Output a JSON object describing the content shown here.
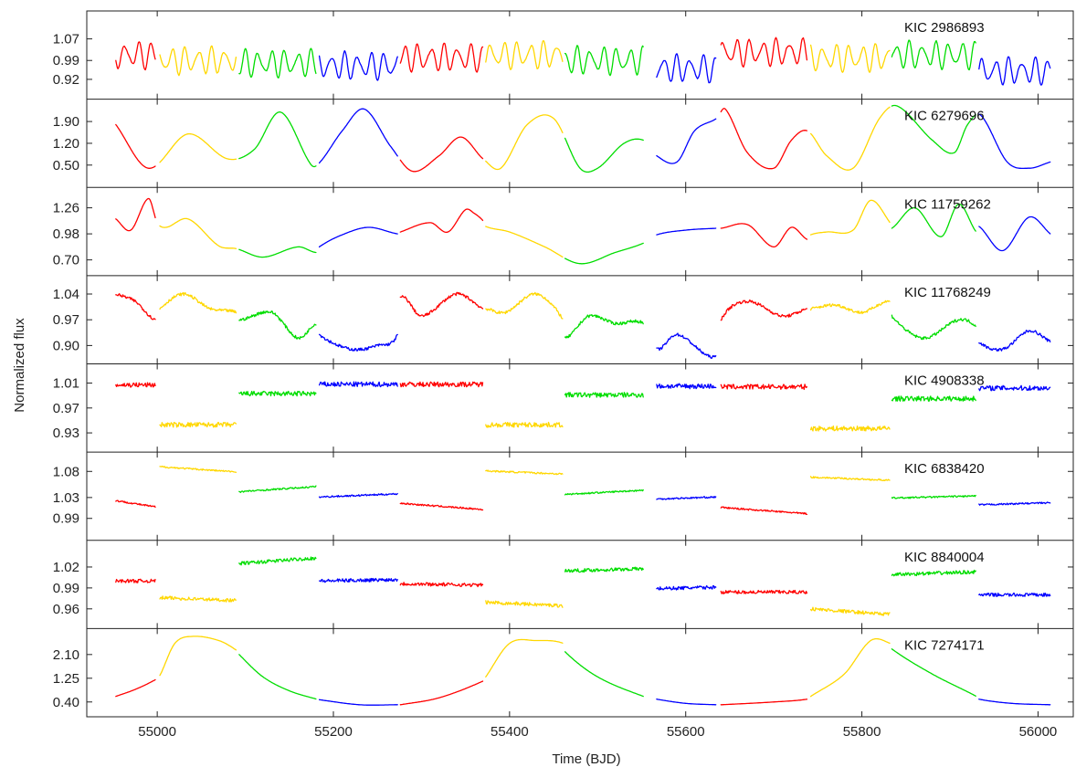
{
  "chart_data": {
    "type": "line",
    "xlabel": "Time (BJD)",
    "ylabel": "Normalized flux",
    "xlim": [
      54920,
      56040
    ],
    "x_ticks": [
      55000,
      55200,
      55400,
      55600,
      55800,
      56000
    ],
    "grid": false,
    "legend": "none",
    "colors": {
      "red": "#ff0000",
      "yellow": "#ffd700",
      "green": "#00dd00",
      "blue": "#0000ff"
    },
    "quarters": [
      {
        "start": 54953,
        "end": 54998,
        "color": "red"
      },
      {
        "start": 55003,
        "end": 55090,
        "color": "yellow"
      },
      {
        "start": 55093,
        "end": 55181,
        "color": "green"
      },
      {
        "start": 55184,
        "end": 55273,
        "color": "blue"
      },
      {
        "start": 55276,
        "end": 55370,
        "color": "red"
      },
      {
        "start": 55373,
        "end": 55461,
        "color": "yellow"
      },
      {
        "start": 55463,
        "end": 55552,
        "color": "green"
      },
      {
        "start": 55567,
        "end": 55635,
        "color": "blue"
      },
      {
        "start": 55640,
        "end": 55738,
        "color": "red"
      },
      {
        "start": 55742,
        "end": 55832,
        "color": "yellow"
      },
      {
        "start": 55834,
        "end": 55930,
        "color": "green"
      },
      {
        "start": 55933,
        "end": 56014,
        "color": "blue"
      }
    ],
    "panels": [
      {
        "name": "KIC 2986893",
        "ylim": [
          0.86,
          1.16
        ],
        "yticks": [
          "1.07",
          "0.99",
          "0.92"
        ],
        "ytick_values": [
          1.07,
          0.99,
          0.92
        ],
        "kind": "osc",
        "base": 0.99,
        "amp": 0.05,
        "period": 15,
        "noise": 0.003,
        "offsets": [
          1.01,
          0.99,
          0.98,
          0.97,
          1.0,
          1.01,
          0.99,
          0.96,
          1.02,
          1.0,
          1.01,
          0.95
        ]
      },
      {
        "name": "KIC 6279696",
        "ylim": [
          -0.1,
          2.5
        ],
        "yticks": [
          "1.90",
          "1.20",
          "0.50"
        ],
        "ytick_values": [
          1.9,
          1.2,
          0.5
        ],
        "kind": "smooth",
        "noise": 0,
        "x": [
          54953,
          54990,
          55035,
          55080,
          55110,
          55140,
          55175,
          55185,
          55210,
          55235,
          55265,
          55290,
          55320,
          55345,
          55370,
          55390,
          55420,
          55450,
          55480,
          55500,
          55530,
          55552,
          55567,
          55590,
          55610,
          55635,
          55645,
          55670,
          55700,
          55720,
          55738,
          55760,
          55790,
          55820,
          55840,
          55880,
          55905,
          55920,
          55935,
          55965,
          55990,
          56014
        ],
        "y": [
          1.8,
          0.4,
          1.5,
          0.7,
          1.0,
          2.2,
          0.5,
          0.6,
          1.6,
          2.3,
          1.1,
          0.3,
          0.8,
          1.4,
          0.7,
          0.4,
          1.8,
          2.0,
          0.4,
          0.4,
          1.2,
          1.3,
          0.8,
          0.6,
          1.6,
          2.0,
          2.3,
          0.9,
          0.4,
          1.3,
          1.6,
          0.8,
          0.4,
          2.0,
          2.4,
          1.3,
          0.9,
          1.8,
          2.1,
          0.6,
          0.4,
          0.6
        ]
      },
      {
        "name": "KIC 11759262",
        "ylim": [
          0.57,
          1.44
        ],
        "yticks": [
          "1.26",
          "0.98",
          "0.70"
        ],
        "ytick_values": [
          1.26,
          0.98,
          0.7
        ],
        "kind": "smooth",
        "noise": 0,
        "x": [
          54953,
          54970,
          54990,
          55000,
          55010,
          55035,
          55070,
          55090,
          55120,
          55160,
          55181,
          55184,
          55210,
          55240,
          55273,
          55276,
          55310,
          55330,
          55350,
          55360,
          55370,
          55373,
          55400,
          55440,
          55480,
          55520,
          55552,
          55567,
          55600,
          55635,
          55640,
          55670,
          55700,
          55720,
          55738,
          55742,
          55760,
          55790,
          55810,
          55832,
          55834,
          55860,
          55890,
          55910,
          55930,
          55933,
          55960,
          55990,
          56014
        ],
        "y": [
          1.14,
          1.02,
          1.36,
          1.1,
          1.05,
          1.14,
          0.85,
          0.82,
          0.73,
          0.84,
          0.78,
          0.84,
          0.97,
          1.05,
          0.98,
          1.0,
          1.1,
          1.0,
          1.24,
          1.2,
          1.12,
          1.06,
          1.0,
          0.84,
          0.66,
          0.78,
          0.88,
          0.97,
          1.02,
          1.04,
          1.04,
          1.08,
          0.84,
          1.05,
          0.92,
          0.97,
          1.0,
          1.02,
          1.34,
          1.1,
          1.04,
          1.26,
          0.95,
          1.3,
          1.0,
          1.06,
          0.8,
          1.16,
          0.98
        ]
      },
      {
        "name": "KIC 11768249",
        "ylim": [
          0.86,
          1.08
        ],
        "yticks": [
          "1.04",
          "0.97",
          "0.90"
        ],
        "ytick_values": [
          1.04,
          0.97,
          0.9
        ],
        "kind": "smooth",
        "noise": 0.004,
        "x": [
          54953,
          54975,
          54998,
          55003,
          55030,
          55060,
          55090,
          55093,
          55130,
          55160,
          55181,
          55184,
          55220,
          55250,
          55273,
          55276,
          55300,
          55340,
          55370,
          55373,
          55395,
          55430,
          55461,
          55463,
          55490,
          55520,
          55552,
          55567,
          55590,
          55635,
          55640,
          55670,
          55710,
          55738,
          55742,
          55770,
          55800,
          55832,
          55834,
          55870,
          55910,
          55930,
          55933,
          55960,
          55990,
          56014
        ],
        "y": [
          1.04,
          1.02,
          0.97,
          1.0,
          1.04,
          1.0,
          0.99,
          0.97,
          0.99,
          0.92,
          0.96,
          0.93,
          0.89,
          0.9,
          0.93,
          1.03,
          0.98,
          1.04,
          1.0,
          1.0,
          0.99,
          1.04,
          0.97,
          0.92,
          0.98,
          0.96,
          0.96,
          0.89,
          0.93,
          0.87,
          0.97,
          1.02,
          0.98,
          1.0,
          1.0,
          1.01,
          0.99,
          1.02,
          0.98,
          0.92,
          0.97,
          0.95,
          0.91,
          0.89,
          0.94,
          0.91
        ]
      },
      {
        "name": "KIC 4908338",
        "ylim": [
          0.905,
          1.035
        ],
        "yticks": [
          "1.01",
          "0.97",
          "0.93"
        ],
        "ytick_values": [
          1.01,
          0.97,
          0.93
        ],
        "kind": "flat",
        "noise": 0.004,
        "offsets": [
          1.007,
          0.943,
          0.993,
          1.008,
          1.008,
          0.943,
          0.991,
          1.005,
          1.004,
          0.937,
          0.985,
          1.002
        ]
      },
      {
        "name": "KIC 6838420",
        "ylim": [
          0.955,
          1.11
        ],
        "yticks": [
          "1.08",
          "1.03",
          "0.99"
        ],
        "ytick_values": [
          1.08,
          1.03,
          0.99
        ],
        "kind": "flat",
        "noise": 0.0015,
        "offsets": [
          1.018,
          1.084,
          1.046,
          1.034,
          1.013,
          1.078,
          1.04,
          1.029,
          1.005,
          1.066,
          1.031,
          1.018
        ],
        "slopes": [
          -0.012,
          -0.01,
          0.01,
          0.006,
          -0.012,
          -0.006,
          0.008,
          0.004,
          -0.012,
          -0.006,
          0.004,
          0.004
        ]
      },
      {
        "name": "KIC 8840004",
        "ylim": [
          0.937,
          1.053
        ],
        "yticks": [
          "1.02",
          "0.99",
          "0.96"
        ],
        "ytick_values": [
          1.02,
          0.99,
          0.96
        ],
        "kind": "flat",
        "noise": 0.0025,
        "offsets": [
          1.0,
          0.974,
          1.029,
          1.001,
          0.995,
          0.967,
          1.016,
          0.99,
          0.984,
          0.956,
          1.011,
          0.98
        ],
        "slopes": [
          0,
          -0.004,
          0.008,
          0.002,
          -0.002,
          -0.005,
          0.003,
          0.002,
          0,
          -0.008,
          0.004,
          0
        ]
      },
      {
        "name": "KIC 7274171",
        "ylim": [
          0.0,
          2.9
        ],
        "yticks": [
          "2.10",
          "1.25",
          "0.40"
        ],
        "ytick_values": [
          2.1,
          1.25,
          0.4
        ],
        "kind": "smooth",
        "noise": 0,
        "x": [
          54953,
          54975,
          54998,
          55003,
          55020,
          55040,
          55070,
          55090,
          55093,
          55120,
          55150,
          55181,
          55184,
          55230,
          55273,
          55276,
          55320,
          55370,
          55373,
          55400,
          55430,
          55461,
          55463,
          55500,
          55552,
          55567,
          55600,
          55635,
          55640,
          55700,
          55738,
          55742,
          55780,
          55810,
          55832,
          55834,
          55880,
          55930,
          55933,
          55970,
          56014
        ],
        "y": [
          0.6,
          0.85,
          1.2,
          1.35,
          2.5,
          2.75,
          2.6,
          2.25,
          2.1,
          1.3,
          0.8,
          0.5,
          0.48,
          0.3,
          0.3,
          0.3,
          0.55,
          1.15,
          1.3,
          2.5,
          2.6,
          2.5,
          2.2,
          1.3,
          0.6,
          0.5,
          0.35,
          0.3,
          0.3,
          0.4,
          0.5,
          0.6,
          1.4,
          2.6,
          2.5,
          2.3,
          1.4,
          0.6,
          0.5,
          0.35,
          0.3
        ]
      }
    ]
  }
}
